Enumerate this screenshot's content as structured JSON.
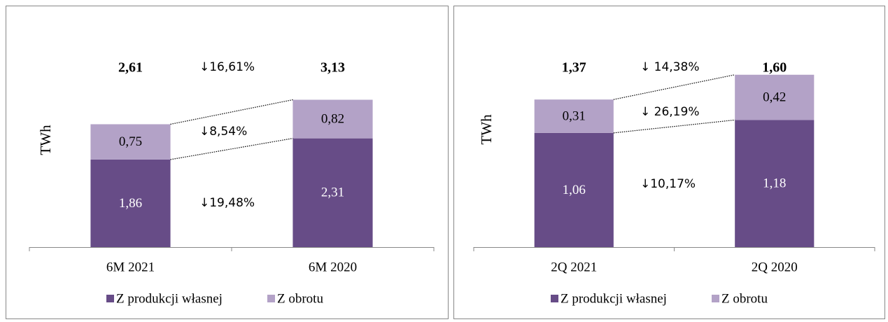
{
  "chart_data": [
    {
      "type": "stacked_bar",
      "ylabel": "TWh",
      "categories": [
        "6M 2021",
        "6M 2020"
      ],
      "series": [
        {
          "name": "Z produkcji własnej",
          "color": "#674c87",
          "values": [
            1.86,
            2.31
          ],
          "value_labels": [
            "1,86",
            "2,31"
          ]
        },
        {
          "name": "Z obrotu",
          "color": "#b3a2c7",
          "values": [
            0.75,
            0.82
          ],
          "value_labels": [
            "0,75",
            "0,82"
          ]
        }
      ],
      "total_labels": [
        "2,61",
        "3,13"
      ],
      "change_labels": [
        "↓16,61%",
        "↓8,54%",
        "↓19,48%"
      ],
      "ylim": [
        0,
        4
      ]
    },
    {
      "type": "stacked_bar",
      "ylabel": "TWh",
      "categories": [
        "2Q 2021",
        "2Q 2020"
      ],
      "series": [
        {
          "name": "Z produkcji własnej",
          "color": "#674c87",
          "values": [
            1.06,
            1.18
          ],
          "value_labels": [
            "1,06",
            "1,18"
          ]
        },
        {
          "name": "Z obrotu",
          "color": "#b3a2c7",
          "values": [
            0.31,
            0.42
          ],
          "value_labels": [
            "0,31",
            "0,42"
          ]
        }
      ],
      "total_labels": [
        "1,37",
        "1,60"
      ],
      "change_labels": [
        "↓ 14,38%",
        "↓ 26,19%",
        "↓10,17%"
      ],
      "ylim": [
        0,
        1.8
      ]
    }
  ]
}
